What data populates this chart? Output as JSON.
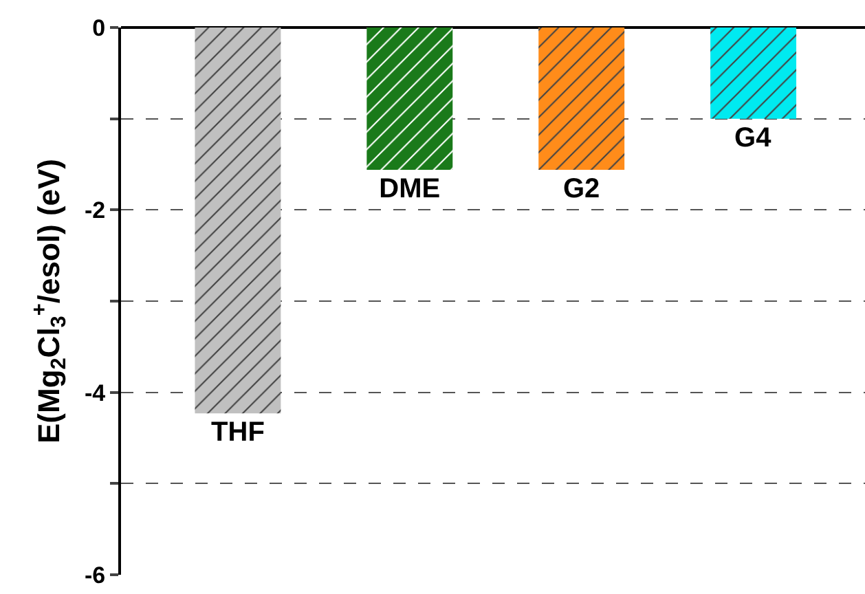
{
  "chart_data": {
    "type": "bar",
    "categories": [
      "THF",
      "DME",
      "G2",
      "G4"
    ],
    "values": [
      -4.23,
      -1.56,
      -1.56,
      -1.0
    ],
    "colors": [
      "#c0c0c0",
      "#1a7a1a",
      "#ff8c1a",
      "#00eaf0"
    ],
    "ylabel": "E(Mg$_{2}$Cl$_{3}$$^{+}$/esol) (eV)",
    "ylim": [
      -6,
      0
    ],
    "yticks": [
      -6,
      {
        "value": -5,
        "label": null
      },
      -4,
      {
        "value": -3,
        "label": null
      },
      -2,
      {
        "value": -1,
        "label": null
      },
      0
    ],
    "grid": "y",
    "legend": false
  }
}
